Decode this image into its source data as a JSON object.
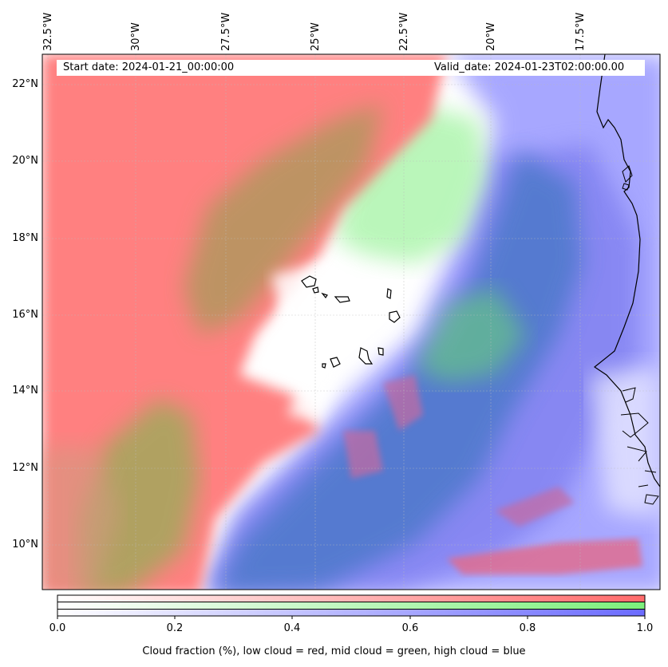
{
  "map": {
    "start_date": "Start date: 2024-01-21_00:00:00",
    "valid_date": "Valid_date: 2024-01-23T02:00:00.00",
    "lon_labels": [
      "32.5°W",
      "30°W",
      "27.5°W",
      "25°W",
      "22.5°W",
      "20°W",
      "17.5°W"
    ],
    "lat_labels": [
      "22°N",
      "20°N",
      "18°N",
      "16°N",
      "14°N",
      "12°N",
      "10°N"
    ],
    "layers": [
      {
        "name": "low cloud",
        "color": "#ff8080"
      },
      {
        "name": "mid cloud",
        "color": "#8ef08e"
      },
      {
        "name": "high cloud",
        "color": "#8080ff"
      }
    ]
  },
  "colorbar": {
    "ticks": [
      "0.0",
      "0.2",
      "0.4",
      "0.6",
      "0.8",
      "1.0"
    ],
    "label": "Cloud fraction (%), low cloud = red, mid cloud = green, high cloud = blue",
    "colors": {
      "low": "#ff6b6b",
      "mid": "#7cf07c",
      "high": "#6b6bff"
    }
  }
}
